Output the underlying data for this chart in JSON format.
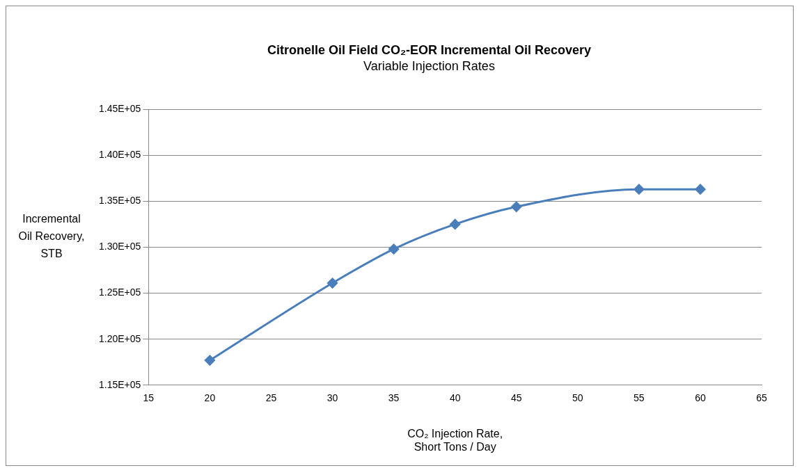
{
  "chart_data": {
    "type": "line",
    "title": "Citronelle Oil Field CO₂-EOR Incremental Oil Recovery",
    "subtitle": "Variable Injection Rates",
    "xlabel": "CO₂ Injection Rate,\nShort Tons / Day",
    "ylabel": "Incremental\nOil Recovery,\nSTB",
    "x": [
      20,
      30,
      35,
      40,
      45,
      55,
      60
    ],
    "series": [
      {
        "color": "#4a7ebb",
        "values": [
          117700,
          126100,
          129800,
          132500,
          134400,
          136300,
          136300
        ]
      }
    ],
    "xlim": [
      15,
      65
    ],
    "xticks": [
      15,
      20,
      25,
      30,
      35,
      40,
      45,
      50,
      55,
      60,
      65
    ],
    "ylim": [
      115000,
      145000
    ],
    "yticks": [
      {
        "value": 115000,
        "label": "1.15E+05"
      },
      {
        "value": 120000,
        "label": "1.20E+05"
      },
      {
        "value": 125000,
        "label": "1.25E+05"
      },
      {
        "value": 130000,
        "label": "1.30E+05"
      },
      {
        "value": 135000,
        "label": "1.35E+05"
      },
      {
        "value": 140000,
        "label": "1.40E+05"
      },
      {
        "value": 145000,
        "label": "1.45E+05"
      }
    ],
    "grid": "y",
    "legend": false,
    "marker": "diamond",
    "line_style": "solid"
  }
}
